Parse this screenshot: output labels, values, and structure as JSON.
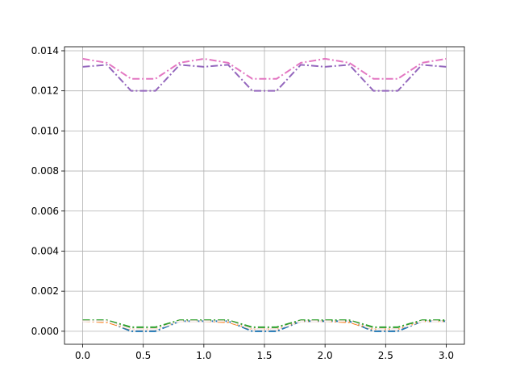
{
  "chart_data": {
    "type": "line",
    "title": "",
    "xlabel": "",
    "ylabel": "",
    "xlim": [
      -0.15,
      3.15
    ],
    "ylim": [
      -0.00065,
      0.0142
    ],
    "grid": true,
    "x_ticks": [
      0.0,
      0.5,
      1.0,
      1.5,
      2.0,
      2.5,
      3.0
    ],
    "x_tick_labels": [
      "0.0",
      "0.5",
      "1.0",
      "1.5",
      "2.0",
      "2.5",
      "3.0"
    ],
    "y_ticks": [
      0.0,
      0.002,
      0.004,
      0.006,
      0.008,
      0.01,
      0.012,
      0.014
    ],
    "y_tick_labels": [
      "0.000",
      "0.002",
      "0.004",
      "0.006",
      "0.008",
      "0.010",
      "0.012",
      "0.014"
    ],
    "x": [
      0.0,
      0.2,
      0.4,
      0.6,
      0.8,
      1.0,
      1.2,
      1.4,
      1.6,
      1.8,
      2.0,
      2.2,
      2.4,
      2.6,
      2.8,
      3.0
    ],
    "series": [
      {
        "color": "#1f77b4",
        "values": [
          0.0005,
          0.0005,
          0.0,
          0.0,
          0.0005,
          0.0005,
          0.0005,
          0.0,
          0.0,
          0.0005,
          0.0005,
          0.0005,
          0.0,
          0.0,
          0.0005,
          0.0005
        ]
      },
      {
        "color": "#ff7f0e",
        "values": [
          0.0005,
          0.00045,
          0.0001,
          0.0001,
          0.0005,
          0.0005,
          0.00045,
          0.0001,
          0.0001,
          0.0005,
          0.0005,
          0.00045,
          0.0001,
          0.0001,
          0.0005,
          0.0005
        ]
      },
      {
        "color": "#2ca02c",
        "values": [
          0.00055,
          0.00055,
          0.0002,
          0.0002,
          0.00055,
          0.00055,
          0.00055,
          0.0002,
          0.0002,
          0.00055,
          0.00055,
          0.00055,
          0.0002,
          0.0002,
          0.00055,
          0.00055
        ]
      },
      {
        "color": "#d62728",
        "values": [
          0.0005,
          0.0005,
          0.0001,
          0.0001,
          0.0005,
          0.0005,
          0.0005,
          0.0001,
          0.0001,
          0.0005,
          0.0005,
          0.0005,
          0.0001,
          0.0001,
          0.0005,
          0.0005
        ]
      },
      {
        "color": "#9467bd",
        "values": [
          0.0132,
          0.0133,
          0.012,
          0.012,
          0.0133,
          0.0132,
          0.0133,
          0.012,
          0.012,
          0.0133,
          0.0132,
          0.0133,
          0.012,
          0.012,
          0.0133,
          0.0132
        ]
      },
      {
        "color": "#e377c2",
        "values": [
          0.0136,
          0.0134,
          0.0126,
          0.0126,
          0.0134,
          0.0136,
          0.0134,
          0.0126,
          0.0126,
          0.0134,
          0.0136,
          0.0134,
          0.0126,
          0.0126,
          0.0134,
          0.0136
        ]
      },
      {
        "color": "#f7f7f7",
        "values": [
          0.0005,
          0.0005,
          0.0001,
          0.0001,
          0.0005,
          0.0005,
          0.0005,
          0.0001,
          0.0001,
          0.0005,
          0.0005,
          0.0005,
          0.0001,
          0.0001,
          0.0005,
          0.0005
        ]
      }
    ]
  }
}
